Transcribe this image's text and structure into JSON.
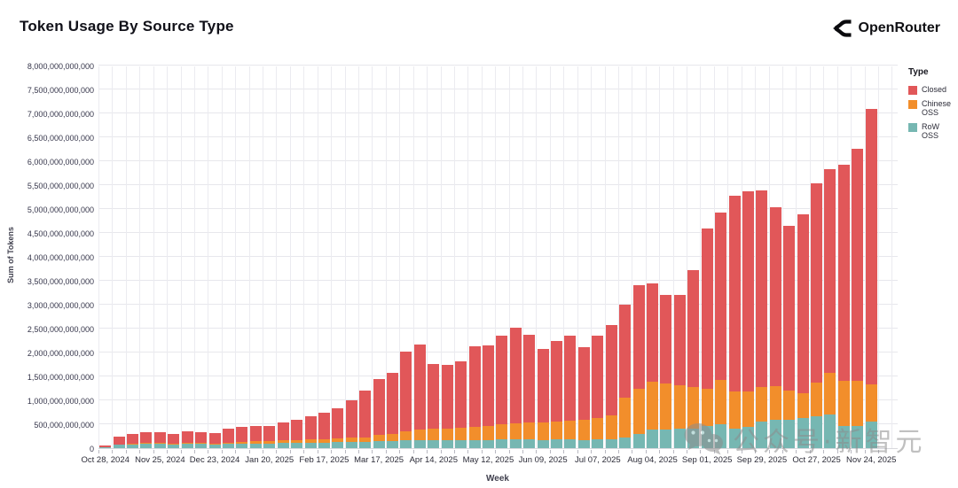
{
  "header": {
    "title": "Token Usage By Source Type",
    "brand": "OpenRouter"
  },
  "chart_data": {
    "type": "bar",
    "stacked": true,
    "title": "Token Usage By Source Type",
    "xlabel": "Week",
    "ylabel": "Sum of Tokens",
    "ylim": [
      0,
      8000000000000
    ],
    "ytick_step": 500000000000,
    "grid": true,
    "legend_title": "Type",
    "legend_position": "right",
    "n_bars": 57,
    "x_tick_every": 4,
    "x_tick_labels": [
      "Oct 28, 2024",
      "Nov 25, 2024",
      "Dec 23, 2024",
      "Jan 20, 2025",
      "Feb 17, 2025",
      "Mar 17, 2025",
      "Apr 14, 2025",
      "May 12, 2025",
      "Jun 09, 2025",
      "Jul 07, 2025",
      "Aug 04, 2025",
      "Sep 01, 2025",
      "Sep 29, 2025",
      "Oct 27, 2025",
      "Nov 24, 2025"
    ],
    "value_unit_tokens": 1000000000,
    "series": [
      {
        "name": "RoW OSS",
        "color": "#76b7b2",
        "values_billions": [
          15,
          70,
          80,
          90,
          90,
          80,
          90,
          90,
          80,
          90,
          100,
          100,
          100,
          110,
          110,
          120,
          120,
          130,
          130,
          130,
          150,
          150,
          160,
          170,
          160,
          160,
          160,
          170,
          170,
          180,
          180,
          180,
          170,
          180,
          180,
          170,
          180,
          190,
          220,
          300,
          380,
          380,
          400,
          400,
          470,
          500,
          400,
          450,
          560,
          590,
          600,
          630,
          670,
          700,
          470,
          460,
          560
        ]
      },
      {
        "name": "Chinese OSS",
        "color": "#f28e2b",
        "values_billions": [
          5,
          10,
          10,
          15,
          15,
          15,
          20,
          20,
          20,
          30,
          30,
          40,
          40,
          50,
          50,
          60,
          70,
          80,
          90,
          100,
          120,
          140,
          200,
          220,
          240,
          250,
          260,
          270,
          300,
          320,
          340,
          360,
          370,
          380,
          400,
          420,
          450,
          500,
          840,
          950,
          1000,
          980,
          920,
          880,
          780,
          920,
          790,
          740,
          720,
          710,
          610,
          510,
          700,
          880,
          930,
          940,
          780
        ]
      },
      {
        "name": "Closed",
        "color": "#e15759",
        "values_billions": [
          30,
          160,
          210,
          235,
          225,
          205,
          240,
          220,
          210,
          280,
          310,
          320,
          330,
          370,
          440,
          490,
          550,
          620,
          780,
          970,
          1180,
          1280,
          1660,
          1780,
          1360,
          1330,
          1390,
          1690,
          1680,
          1850,
          1990,
          1830,
          1530,
          1680,
          1770,
          1530,
          1720,
          1890,
          1940,
          2150,
          2060,
          1840,
          1880,
          2440,
          3350,
          3510,
          4080,
          4190,
          4110,
          3730,
          3430,
          3750,
          4160,
          4250,
          4530,
          4860,
          5760
        ]
      }
    ]
  },
  "legend_display_order": [
    2,
    1,
    0
  ],
  "watermark": {
    "text": "公众号·新智元",
    "icon": "wechat-icon"
  }
}
